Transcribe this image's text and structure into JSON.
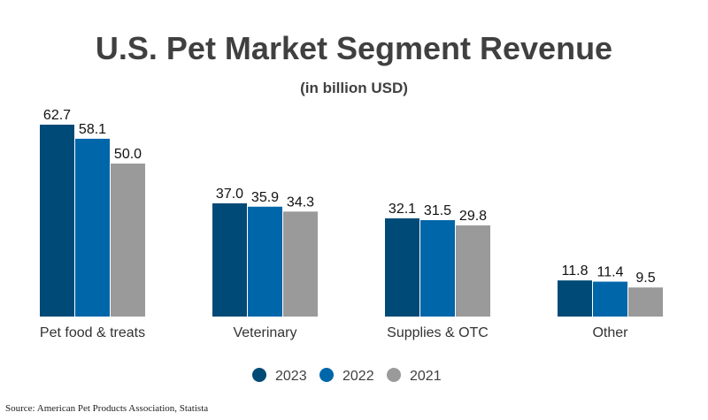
{
  "chart_data": {
    "type": "bar",
    "title": "U.S. Pet Market Segment Revenue",
    "subtitle": "(in billion USD)",
    "categories": [
      "Pet food & treats",
      "Veterinary",
      "Supplies & OTC",
      "Other"
    ],
    "series": [
      {
        "name": "2023",
        "color": "#004a77",
        "values": [
          62.7,
          37.0,
          32.1,
          11.8
        ]
      },
      {
        "name": "2022",
        "color": "#0066aa",
        "values": [
          58.1,
          35.9,
          31.5,
          11.4
        ]
      },
      {
        "name": "2021",
        "color": "#9a9a9a",
        "values": [
          50.0,
          34.3,
          29.8,
          9.5
        ]
      }
    ],
    "xlabel": "",
    "ylabel": "",
    "ylim": [
      0,
      62.7
    ],
    "grid": false,
    "legend": "bottom",
    "source": "Source: American Pet Products Association, Statista"
  }
}
